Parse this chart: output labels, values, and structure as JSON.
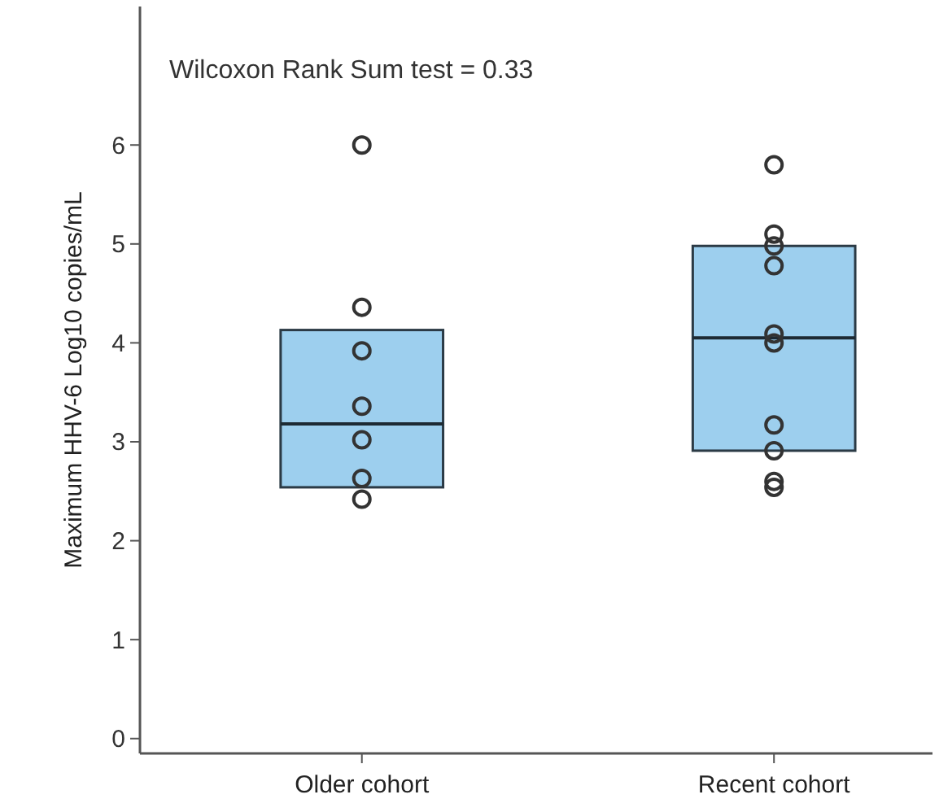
{
  "chart_data": {
    "type": "box",
    "ylabel": "Maximum HHV-6 Log10 copies/mL",
    "categories": [
      "Older cohort",
      "Recent cohort"
    ],
    "ylim": [
      -0.15,
      7.4
    ],
    "yticks": [
      0,
      1,
      2,
      3,
      4,
      5,
      6
    ],
    "grid": false,
    "annotations": [
      "Wilcoxon Rank Sum test = 0.33"
    ],
    "series": [
      {
        "color": "#9dcfee",
        "boxes": [
          {
            "low": 2.54,
            "q1": 2.54,
            "median": 3.18,
            "q3": 4.13,
            "high": 4.13
          },
          {
            "low": 2.91,
            "q1": 2.91,
            "median": 4.05,
            "q3": 4.98,
            "high": 4.98
          }
        ]
      },
      {
        "type": "scatter",
        "color": "#333333",
        "marker": "circle",
        "x": [
          "Older cohort",
          "Older cohort",
          "Older cohort",
          "Older cohort",
          "Older cohort",
          "Older cohort",
          "Older cohort",
          "Recent cohort",
          "Recent cohort",
          "Recent cohort",
          "Recent cohort",
          "Recent cohort",
          "Recent cohort",
          "Recent cohort",
          "Recent cohort",
          "Recent cohort",
          "Recent cohort"
        ],
        "values": [
          6.0,
          4.36,
          3.92,
          3.36,
          3.02,
          2.63,
          2.42,
          5.8,
          5.1,
          4.98,
          4.78,
          4.09,
          4.0,
          3.17,
          2.91,
          2.6,
          2.54
        ]
      }
    ]
  }
}
